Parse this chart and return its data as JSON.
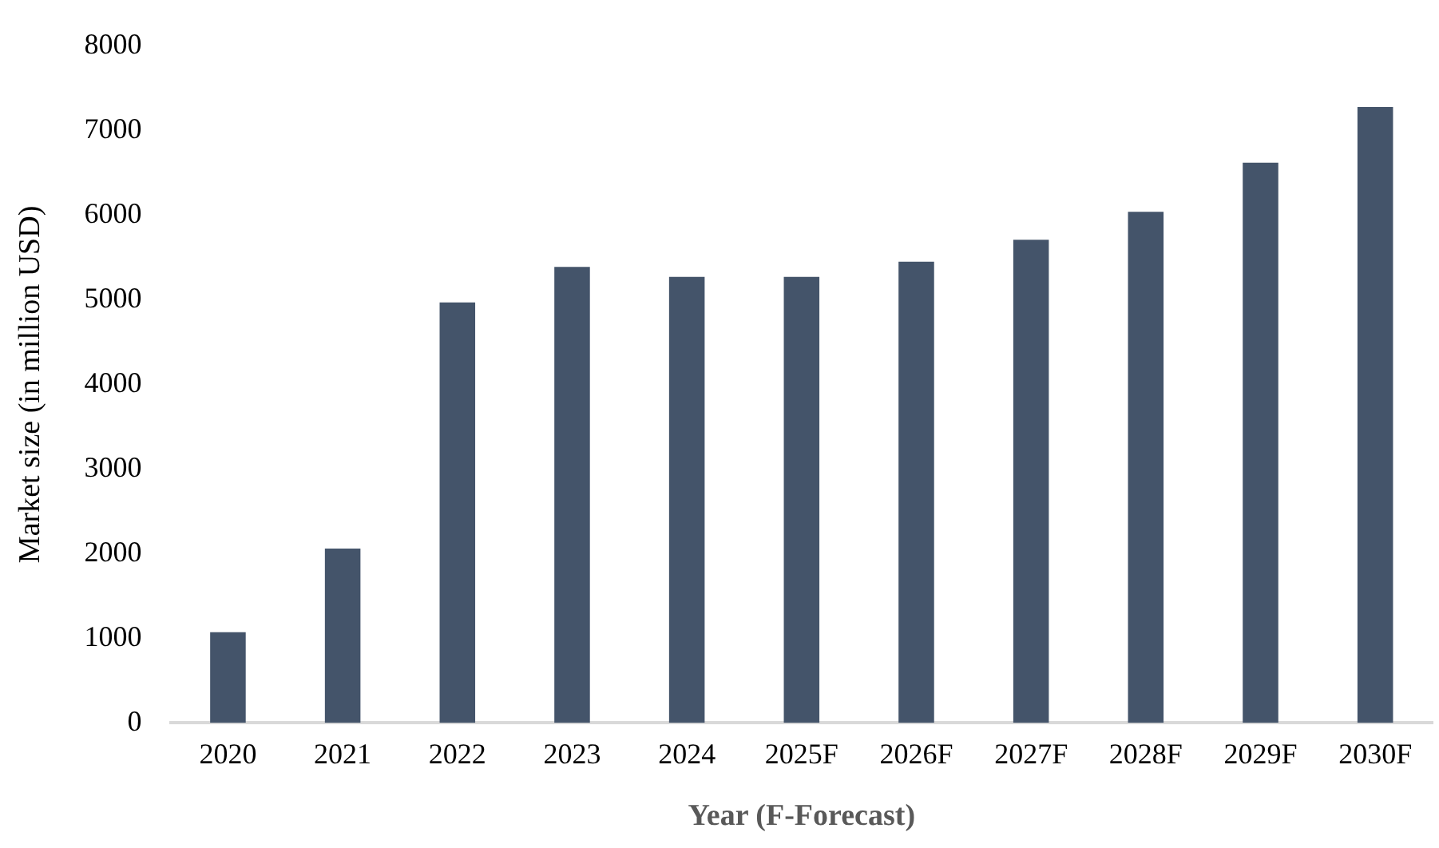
{
  "chart_data": {
    "type": "bar",
    "xlabel": "Year (F-Forecast)",
    "ylabel": "Market size (in million USD)",
    "categories": [
      "2020",
      "2021",
      "2022",
      "2023",
      "2024",
      "2025F",
      "2026F",
      "2027F",
      "2028F",
      "2029F",
      "2030F"
    ],
    "values": [
      1070,
      2060,
      4970,
      5390,
      5270,
      5270,
      5450,
      5710,
      6040,
      6620,
      7280
    ],
    "color": "#44546a",
    "ylim": [
      0,
      8000
    ],
    "yticks": [
      0,
      1000,
      2000,
      3000,
      4000,
      5000,
      6000,
      7000,
      8000
    ],
    "grid": false,
    "legend": false
  }
}
